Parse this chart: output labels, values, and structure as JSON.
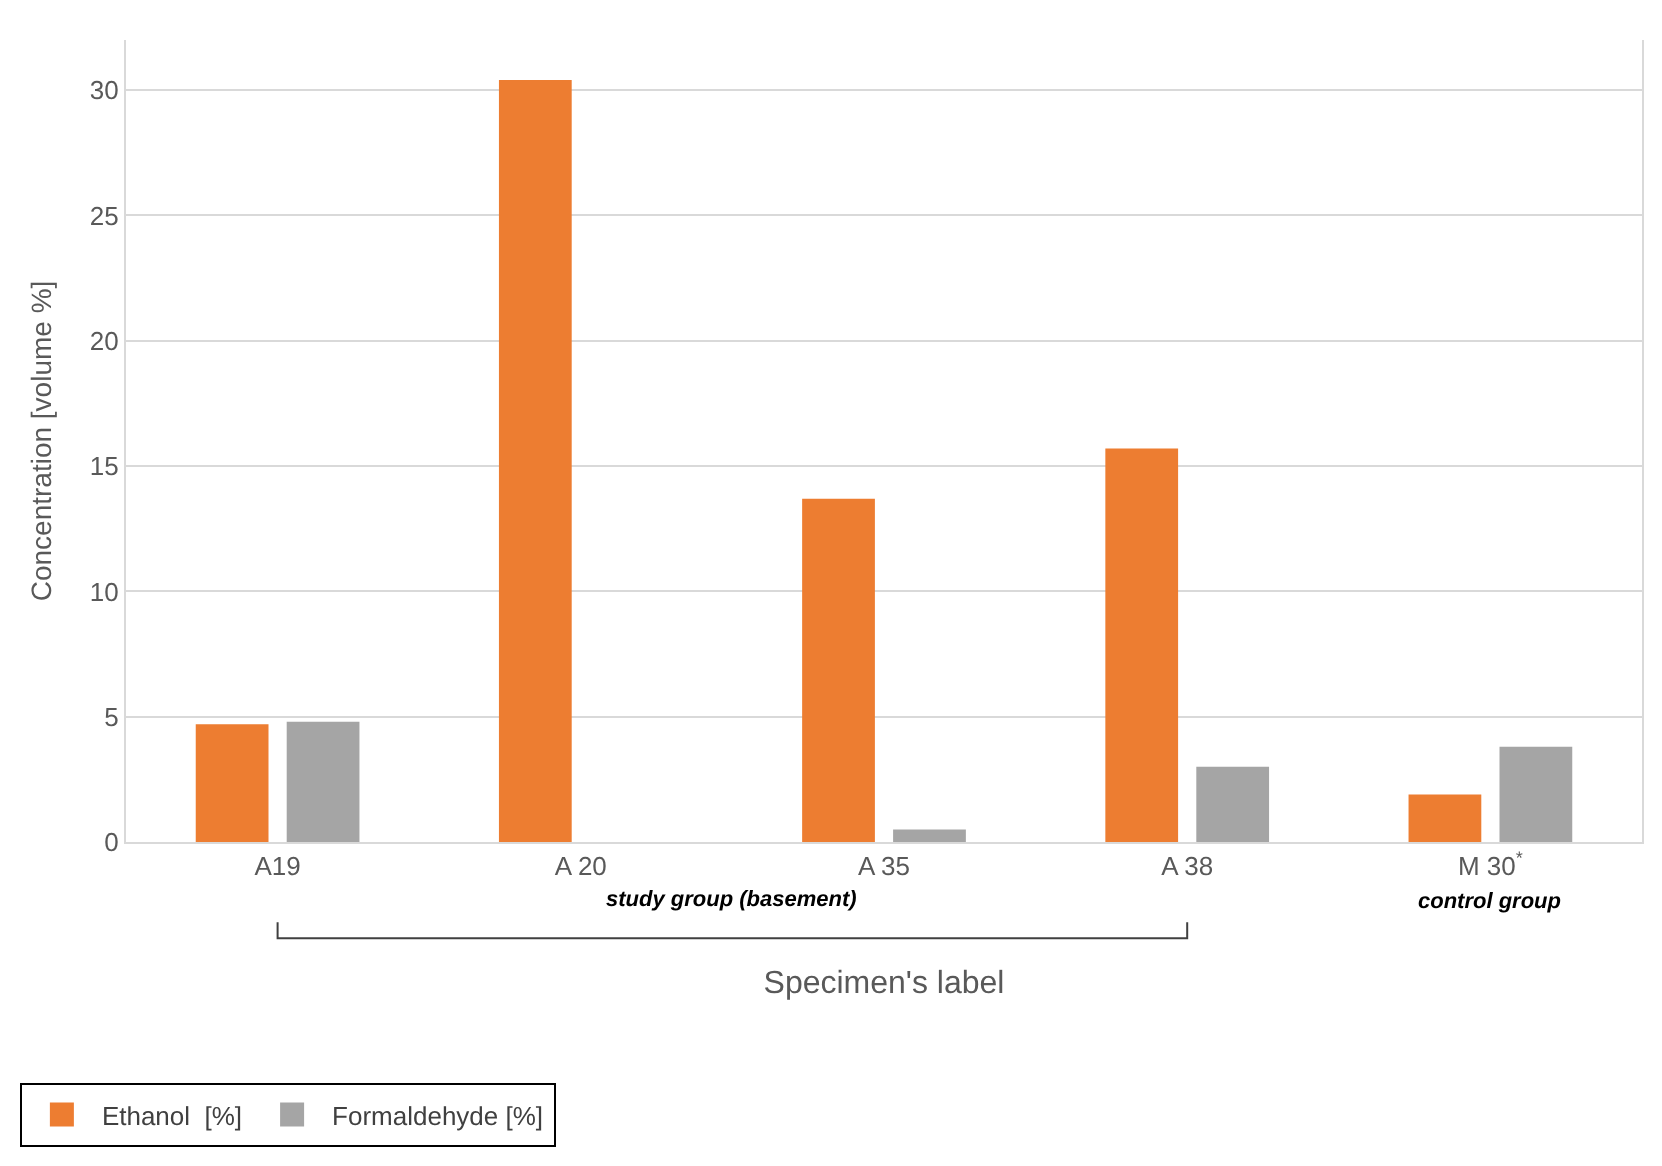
{
  "chart_data": {
    "type": "bar",
    "xlabel": "Specimen's label",
    "ylabel": "Concentration [volume %]",
    "categories": [
      "A19",
      "A 20",
      "A 35",
      "A 38",
      "M 30$^{*}$"
    ],
    "series": [
      {
        "name": "Ethanol  [%]",
        "color": "#ed7d31",
        "values": [
          4.7,
          30.4,
          13.7,
          15.7,
          1.9
        ]
      },
      {
        "name": "Formaldehyde [%]",
        "color": "#a5a5a5",
        "values": [
          4.8,
          null,
          0.5,
          3.0,
          3.8
        ]
      }
    ],
    "ylim": [
      0,
      32
    ],
    "yticks": [
      0,
      5,
      10,
      15,
      20,
      25,
      30
    ],
    "grid": "y",
    "legend": "bottom left",
    "annotations": [
      "study group (basement)",
      "control group"
    ]
  }
}
